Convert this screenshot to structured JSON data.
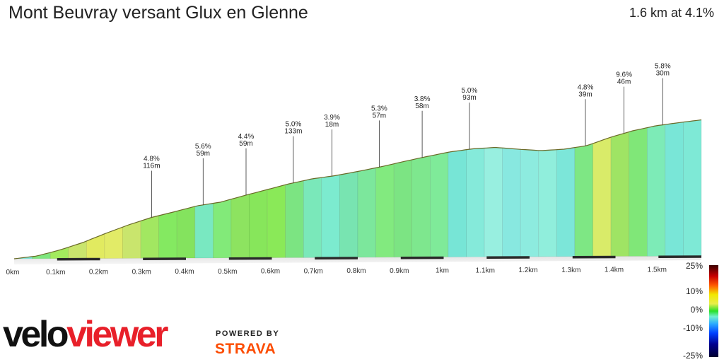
{
  "header": {
    "title": "Mont Beuvray versant Glux en Glenne",
    "summary": "1.6 km at 4.1%"
  },
  "branding": {
    "logo_part1": "velo",
    "logo_part2": "viewer",
    "powered_by": "POWERED BY",
    "strava": "STRAVA"
  },
  "gradient_scale": {
    "labels": [
      "25%",
      "10%",
      "0%",
      "-10%",
      "-25%"
    ]
  },
  "chart_data": {
    "type": "area",
    "xlabel": "",
    "ylabel": "",
    "x_unit": "km",
    "xlim": [
      0,
      1.6
    ],
    "x_ticks": [
      0,
      0.1,
      0.2,
      0.3,
      0.4,
      0.5,
      0.6,
      0.7,
      0.8,
      0.9,
      1.0,
      1.1,
      1.2,
      1.3,
      1.4,
      1.5
    ],
    "x_tick_labels": [
      "0km",
      "0.1km",
      "0.2km",
      "0.3km",
      "0.4km",
      "0.5km",
      "0.6km",
      "0.7km",
      "0.8km",
      "0.9km",
      "1km",
      "1.1km",
      "1.2km",
      "1.3km",
      "1.4km",
      "1.5km"
    ],
    "relative_elevation": [
      0,
      8,
      25,
      46,
      72,
      96,
      117,
      133,
      150,
      160,
      178,
      195,
      212,
      226,
      235,
      247,
      260,
      275,
      289,
      302,
      311,
      315,
      310,
      306,
      310,
      320,
      343,
      362,
      376,
      385,
      393
    ],
    "segments": [
      {
        "label": "4.8%",
        "sub": "116m",
        "color": "#e6ec48",
        "x": 0.32
      },
      {
        "label": "5.6%",
        "sub": "59m",
        "color": "#eaee38",
        "x": 0.44
      },
      {
        "label": "4.4%",
        "sub": "59m",
        "color": "#e4ea50",
        "x": 0.54
      },
      {
        "label": "5.0%",
        "sub": "133m",
        "color": "#e6ec46",
        "x": 0.65
      },
      {
        "label": "3.9%",
        "sub": "18m",
        "color": "#e0e86a",
        "x": 0.74
      },
      {
        "label": "5.3%",
        "sub": "57m",
        "color": "#e6ec44",
        "x": 0.85
      },
      {
        "label": "3.8%",
        "sub": "58m",
        "color": "#e2e864",
        "x": 0.95
      },
      {
        "label": "5.0%",
        "sub": "93m",
        "color": "#e6ec46",
        "x": 1.06
      },
      {
        "label": "4.8%",
        "sub": "39m",
        "color": "#e6ec48",
        "x": 1.33
      },
      {
        "label": "9.6%",
        "sub": "46m",
        "color": "#f0a800",
        "x": 1.42
      },
      {
        "label": "5.8%",
        "sub": "30m",
        "color": "#e8ee3a",
        "x": 1.51
      }
    ]
  }
}
